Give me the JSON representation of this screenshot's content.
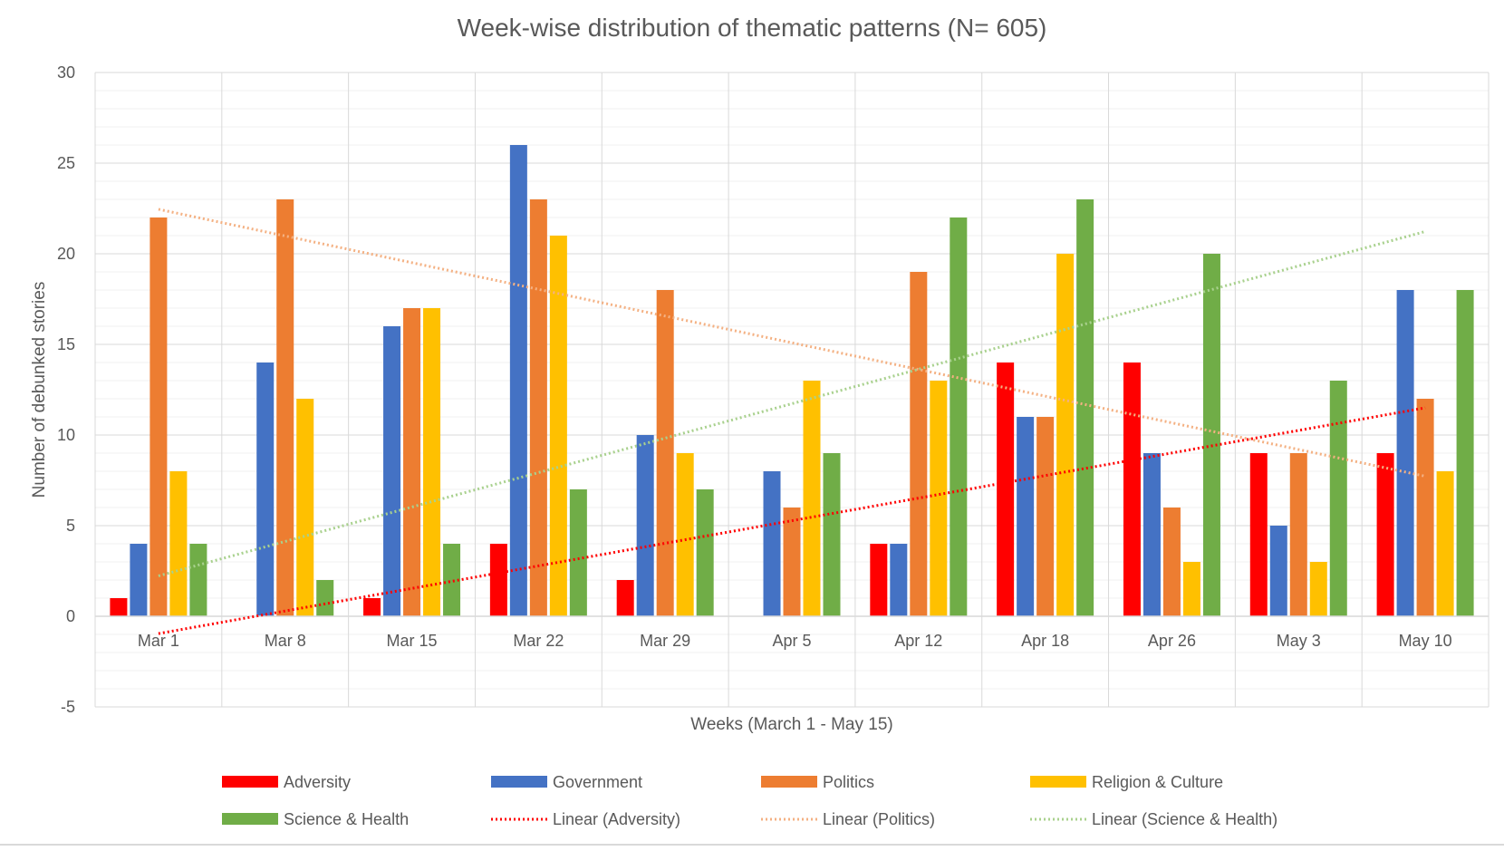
{
  "chart_data": {
    "type": "bar",
    "title": "Week-wise distribution of thematic patterns (N= 605)",
    "xlabel": "Weeks (March 1 - May 15)",
    "ylabel": "Number of debunked stories",
    "ylim": [
      -5,
      30
    ],
    "y_ticks": [
      -5,
      0,
      5,
      10,
      15,
      20,
      25,
      30
    ],
    "y_major_step": 5,
    "y_minor_step": 1,
    "grid": true,
    "legend_position": "bottom",
    "categories": [
      "Mar 1",
      "Mar 8",
      "Mar 15",
      "Mar 22",
      "Mar 29",
      "Apr 5",
      "Apr 12",
      "Apr 18",
      "Apr 26",
      "May 3",
      "May 10"
    ],
    "series": [
      {
        "name": "Adversity",
        "color": "#ff0000",
        "values": [
          1,
          0,
          1,
          4,
          2,
          0,
          4,
          14,
          14,
          9,
          9
        ]
      },
      {
        "name": "Government",
        "color": "#4472c4",
        "values": [
          4,
          14,
          16,
          26,
          10,
          8,
          4,
          11,
          9,
          5,
          18
        ]
      },
      {
        "name": "Politics",
        "color": "#ed7d31",
        "values": [
          22,
          23,
          17,
          23,
          18,
          6,
          19,
          11,
          6,
          9,
          12
        ]
      },
      {
        "name": "Religion & Culture",
        "color": "#ffc000",
        "values": [
          8,
          12,
          17,
          21,
          9,
          13,
          13,
          20,
          3,
          3,
          8
        ]
      },
      {
        "name": "Science & Health",
        "color": "#70ad47",
        "values": [
          4,
          2,
          4,
          7,
          7,
          9,
          22,
          23,
          20,
          13,
          18
        ]
      }
    ],
    "trendlines": [
      {
        "name": "Linear (Adversity)",
        "series": "Adversity",
        "type": "linear",
        "color": "#ff0000",
        "style": "dotted"
      },
      {
        "name": "Linear (Politics)",
        "series": "Politics",
        "type": "linear",
        "color": "#f4b183",
        "style": "dotted"
      },
      {
        "name": "Linear (Science & Health)",
        "series": "Science & Health",
        "type": "linear",
        "color": "#a9d18e",
        "style": "dotted"
      }
    ]
  }
}
